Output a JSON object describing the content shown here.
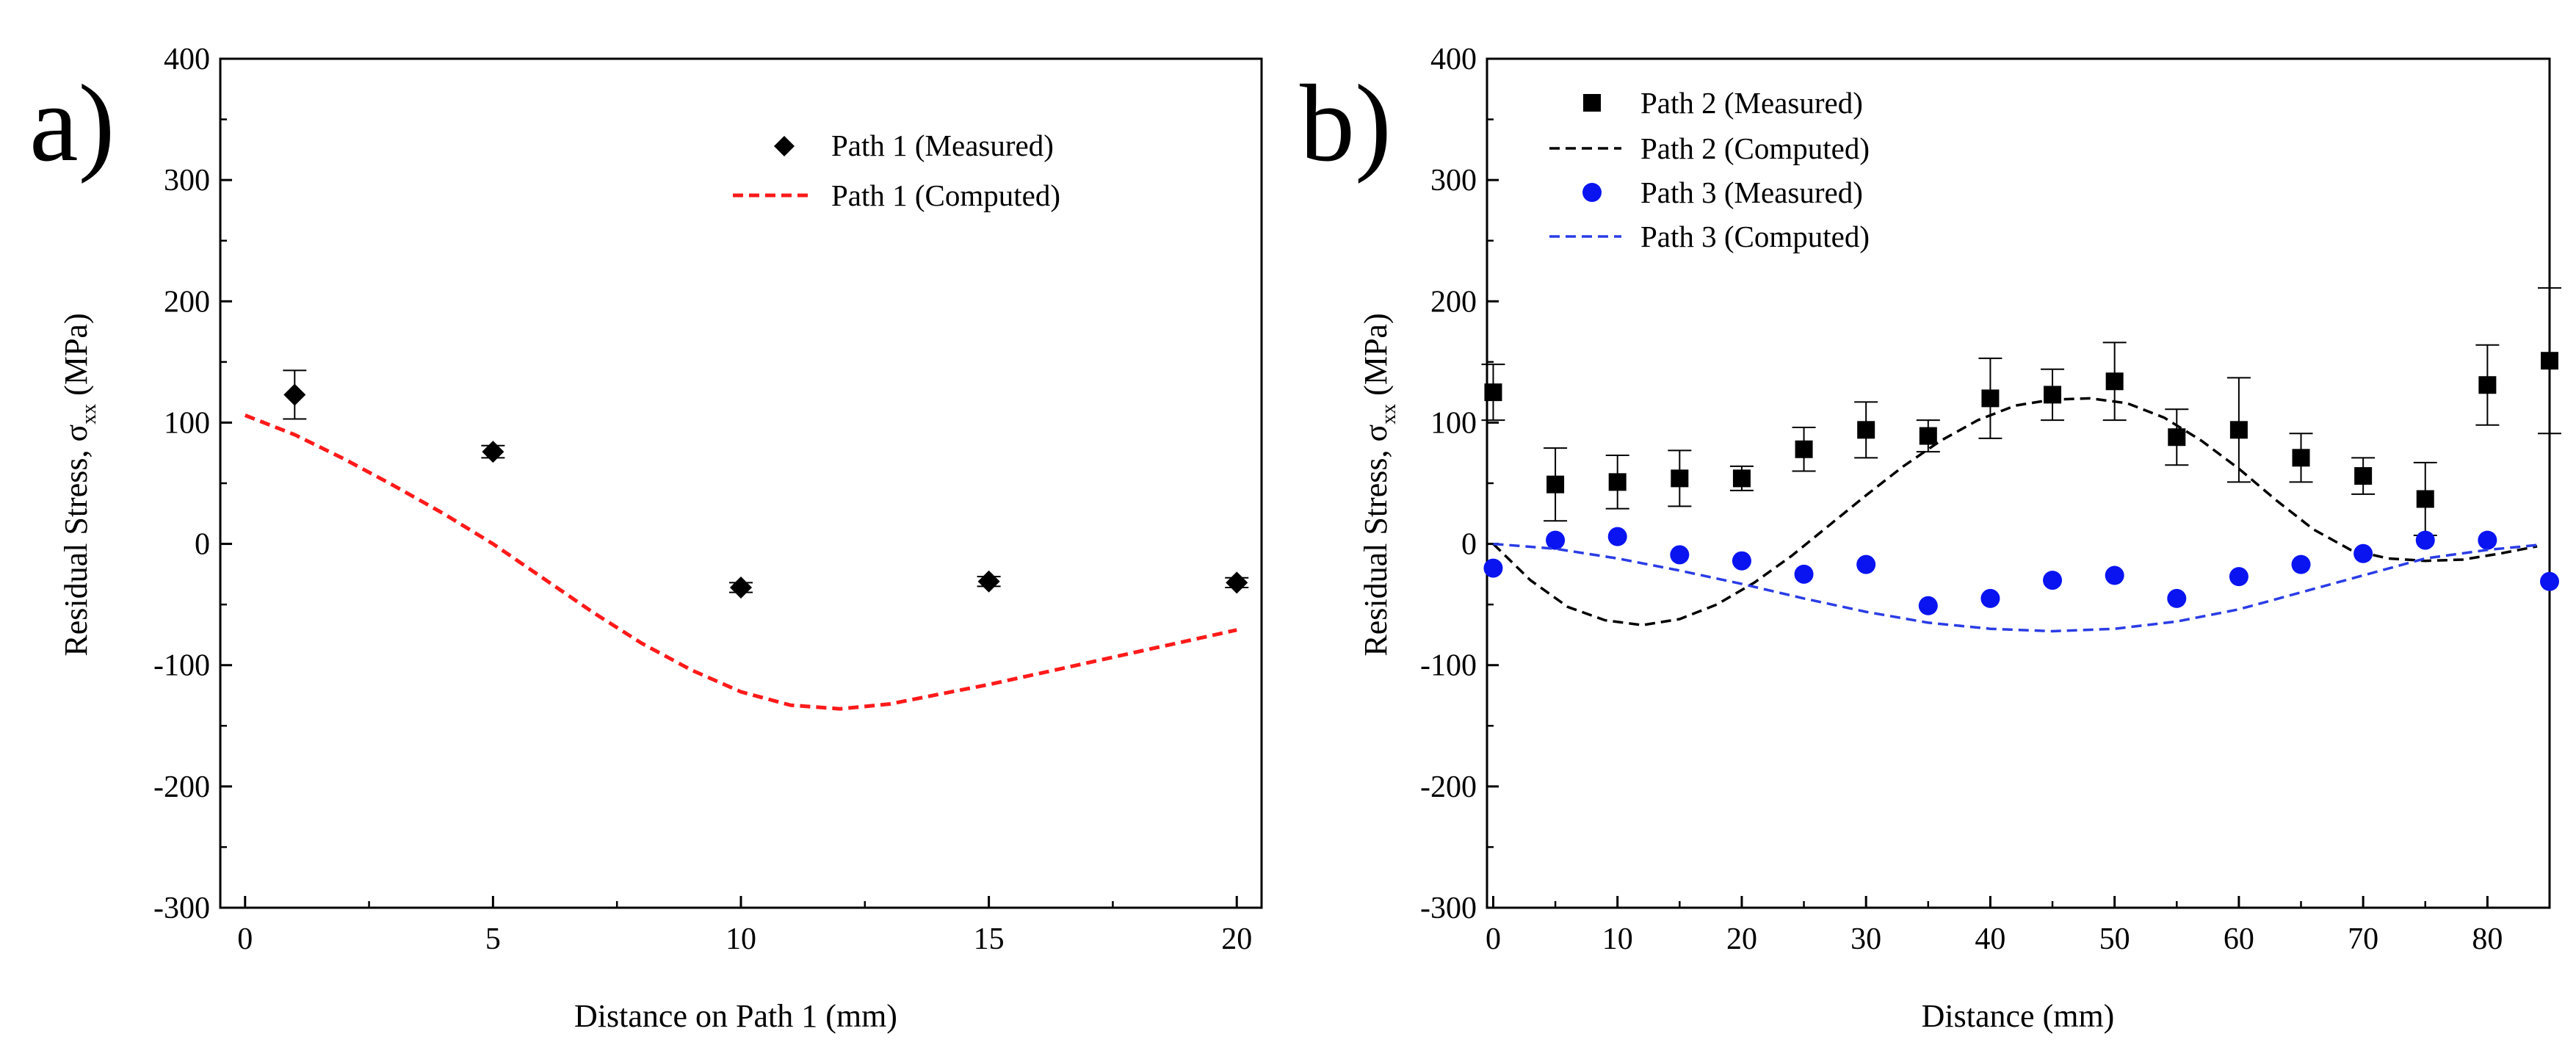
{
  "chart_data": [
    {
      "type": "scatter",
      "panel_label": "a)",
      "xlabel": "Distance on Path 1 (mm)",
      "ylabel": "Residual Stress, σ",
      "ylabel_subscript": "xx",
      "ylabel_unit": " (MPa)",
      "xlim": [
        -0.5,
        20.5
      ],
      "ylim": [
        -300,
        400
      ],
      "xticks": [
        0,
        5,
        10,
        15,
        20
      ],
      "xtick_labels": [
        "0",
        "5",
        "10",
        "15",
        "20"
      ],
      "yticks": [
        -300,
        -200,
        -100,
        0,
        100,
        200,
        300,
        400
      ],
      "ytick_labels": [
        "-300",
        "-200",
        "-100",
        "0",
        "100",
        "200",
        "300",
        "400"
      ],
      "legend_position": "top-right",
      "series": [
        {
          "name": "Path 1 (Measured)",
          "kind": "markers",
          "marker": "diamond",
          "color": "#000000",
          "x": [
            1,
            5,
            10,
            15,
            20
          ],
          "y": [
            123,
            76,
            -36,
            -31,
            -32
          ],
          "err": [
            20,
            5,
            4,
            4,
            4
          ]
        },
        {
          "name": "Path 1 (Computed)",
          "kind": "line",
          "dash": "dashed",
          "color": "#ff1a1a",
          "x": [
            0,
            1,
            2,
            3,
            4,
            5,
            6,
            7,
            8,
            9,
            10,
            11,
            12,
            13,
            14,
            15,
            16,
            17,
            18,
            19,
            20
          ],
          "y": [
            106,
            90,
            70,
            48,
            25,
            0,
            -28,
            -56,
            -82,
            -104,
            -122,
            -133,
            -136,
            -132,
            -124,
            -116,
            -107,
            -98,
            -89,
            -80,
            -71
          ]
        }
      ]
    },
    {
      "type": "scatter",
      "panel_label": "b)",
      "xlabel": "Distance (mm)",
      "ylabel": "Residual Stress, σ",
      "ylabel_subscript": "xx",
      "ylabel_unit": " (MPa)",
      "xlim": [
        -0.5,
        85
      ],
      "ylim": [
        -300,
        400
      ],
      "xticks": [
        0,
        10,
        20,
        30,
        40,
        50,
        60,
        70,
        80
      ],
      "xtick_labels": [
        "0",
        "10",
        "20",
        "30",
        "40",
        "50",
        "60",
        "70",
        "80"
      ],
      "yticks": [
        -300,
        -200,
        -100,
        0,
        100,
        200,
        300,
        400
      ],
      "ytick_labels": [
        "-300",
        "-200",
        "-100",
        "0",
        "100",
        "200",
        "300",
        "400"
      ],
      "legend_position": "top-left",
      "series": [
        {
          "name": "Path 2 (Measured)",
          "kind": "markers",
          "marker": "square",
          "color": "#000000",
          "x": [
            0,
            5,
            10,
            15,
            20,
            25,
            30,
            35,
            40,
            45,
            50,
            55,
            60,
            65,
            70,
            75,
            80,
            85
          ],
          "y": [
            125,
            49,
            51,
            54,
            54,
            78,
            94,
            89,
            120,
            123,
            134,
            88,
            94,
            71,
            56,
            37,
            131,
            151
          ],
          "err": [
            23,
            30,
            22,
            23,
            10,
            18,
            23,
            13,
            33,
            21,
            32,
            23,
            43,
            20,
            15,
            30,
            33,
            60
          ]
        },
        {
          "name": "Path 2 (Computed)",
          "kind": "line",
          "dash": "dashed",
          "color": "#000000",
          "x": [
            0,
            3,
            6,
            9,
            12,
            15,
            18,
            21,
            24,
            27,
            30,
            33,
            36,
            39,
            42,
            45,
            48,
            51,
            54,
            57,
            60,
            63,
            66,
            69,
            72,
            75,
            78,
            81,
            84
          ],
          "y": [
            0,
            -30,
            -52,
            -63,
            -67,
            -62,
            -50,
            -32,
            -10,
            15,
            40,
            64,
            85,
            102,
            114,
            119,
            120,
            116,
            104,
            85,
            62,
            36,
            12,
            -5,
            -12,
            -14,
            -13,
            -8,
            -2
          ]
        },
        {
          "name": "Path 3 (Measured)",
          "kind": "markers",
          "marker": "circle",
          "color": "#0a14f0",
          "x": [
            0,
            5,
            10,
            15,
            20,
            25,
            30,
            35,
            40,
            45,
            50,
            55,
            60,
            65,
            70,
            75,
            80,
            85
          ],
          "y": [
            -20,
            3,
            6,
            -9,
            -14,
            -25,
            -17,
            -51,
            -45,
            -30,
            -26,
            -45,
            -27,
            -17,
            -8,
            3,
            3,
            -31
          ],
          "err": [
            0,
            0,
            0,
            0,
            0,
            0,
            0,
            0,
            0,
            0,
            0,
            0,
            0,
            0,
            0,
            0,
            0,
            0
          ]
        },
        {
          "name": "Path 3 (Computed)",
          "kind": "line",
          "dash": "dashed",
          "color": "#2a3ce6",
          "x": [
            0,
            5,
            10,
            15,
            20,
            25,
            30,
            35,
            40,
            45,
            50,
            55,
            60,
            65,
            70,
            75,
            80,
            84
          ],
          "y": [
            0,
            -4,
            -12,
            -22,
            -33,
            -45,
            -56,
            -65,
            -70,
            -72,
            -70,
            -64,
            -54,
            -40,
            -26,
            -12,
            -5,
            -1
          ]
        }
      ]
    }
  ]
}
